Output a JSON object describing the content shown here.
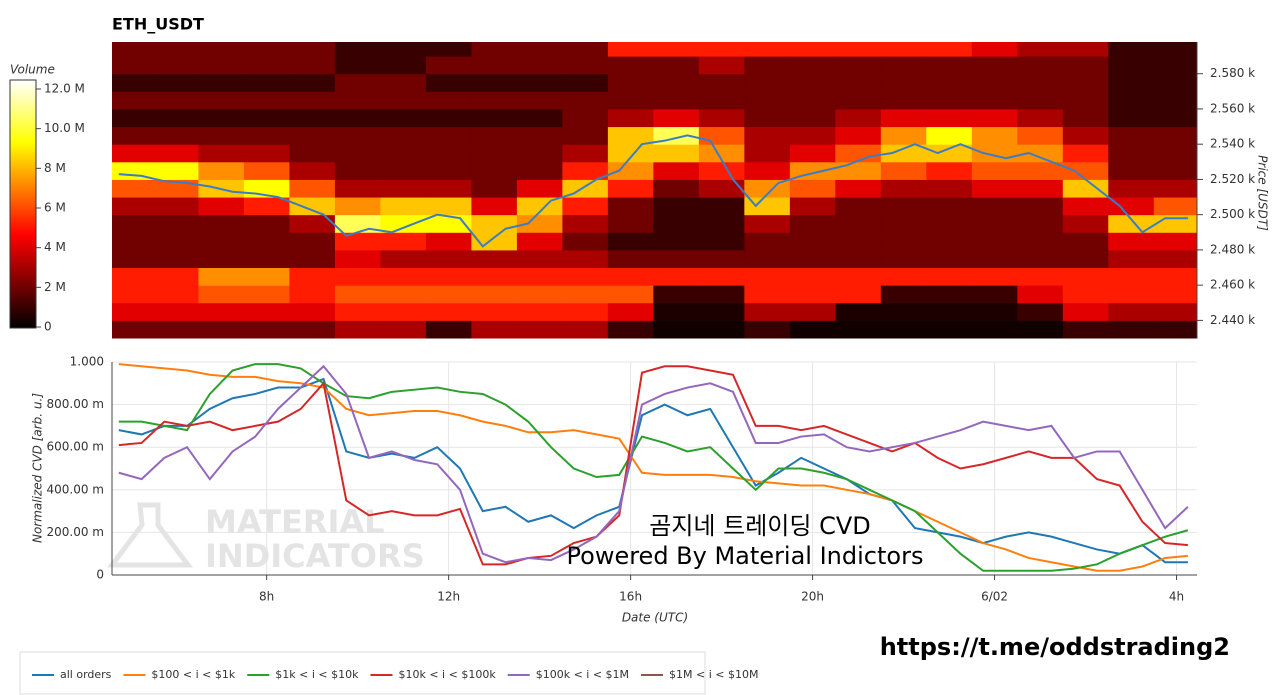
{
  "chart_data": [
    {
      "type": "heatmap",
      "title": "ETH_USDT",
      "ylabel": "Price [USDT]",
      "colorbar_label": "Volume",
      "x": [
        5,
        6,
        7,
        8,
        9,
        10,
        11,
        12,
        13,
        14,
        15,
        16,
        17,
        18,
        19,
        20,
        21,
        22,
        23,
        24,
        25,
        26,
        27,
        28
      ],
      "y": [
        2435,
        2445,
        2455,
        2465,
        2475,
        2485,
        2495,
        2505,
        2515,
        2525,
        2535,
        2545,
        2555,
        2565,
        2575,
        2585,
        2595
      ],
      "values": [
        [
          2,
          2,
          2,
          2,
          2,
          3,
          3,
          1,
          3,
          3,
          3,
          1,
          0.3,
          0.3,
          1,
          0.3,
          0.3,
          0.3,
          0.3,
          0.3,
          0.3,
          1,
          1,
          1
        ],
        [
          4,
          4,
          4,
          4,
          4,
          5,
          5,
          5,
          5,
          5,
          5,
          4,
          0.5,
          0.5,
          3,
          3,
          0.5,
          0.5,
          0.5,
          0.5,
          1,
          4,
          3,
          3
        ],
        [
          5,
          5,
          6,
          6,
          5,
          6,
          6,
          6,
          6,
          6,
          6,
          6,
          1,
          1,
          5,
          5,
          5,
          1,
          1,
          1,
          4,
          5,
          5,
          5
        ],
        [
          5,
          5,
          7,
          7,
          5,
          5,
          5,
          5,
          5,
          5,
          5,
          5,
          5,
          5,
          5,
          5,
          5,
          5,
          5,
          5,
          5,
          5,
          5,
          5
        ],
        [
          2,
          2,
          2,
          2,
          2,
          4,
          3,
          3,
          3,
          3,
          3,
          2,
          2,
          2,
          2,
          2,
          2,
          2,
          2,
          2,
          2,
          2,
          3,
          3
        ],
        [
          2,
          2,
          2,
          2,
          2,
          5,
          5,
          4,
          8,
          4,
          2,
          1,
          1,
          1,
          2,
          2,
          2,
          2,
          2,
          2,
          2,
          2,
          4,
          4
        ],
        [
          2,
          2,
          2,
          2,
          3,
          10,
          9,
          9,
          8,
          7,
          3,
          2,
          1,
          1,
          3,
          2,
          2,
          2,
          2,
          2,
          2,
          3,
          8,
          8
        ],
        [
          3,
          3,
          4,
          5,
          8,
          7,
          8,
          8,
          4,
          8,
          5,
          2,
          1,
          1,
          8,
          3,
          2,
          2,
          2,
          2,
          2,
          4,
          4,
          6
        ],
        [
          6,
          6,
          8,
          9,
          6,
          3,
          3,
          3,
          2,
          4,
          8,
          5,
          2,
          3,
          7,
          6,
          4,
          3,
          3,
          4,
          4,
          8,
          3,
          3
        ],
        [
          9,
          9,
          7,
          6,
          3,
          2,
          2,
          2,
          2,
          2,
          5,
          7,
          4,
          5,
          4,
          7,
          7,
          6,
          5,
          6,
          6,
          6,
          2,
          2
        ],
        [
          4,
          4,
          3,
          3,
          2,
          2,
          2,
          2,
          2,
          2,
          3,
          8,
          8,
          7,
          3,
          4,
          6,
          8,
          8,
          7,
          7,
          5,
          2,
          2
        ],
        [
          2,
          2,
          2,
          2,
          2,
          2,
          2,
          2,
          2,
          2,
          2,
          8,
          10,
          6,
          3,
          3,
          4,
          7,
          9,
          7,
          6,
          3,
          2,
          2
        ],
        [
          1,
          1,
          1,
          1,
          1,
          1,
          1,
          1,
          1,
          1,
          2,
          3,
          4,
          3,
          2,
          2,
          3,
          4,
          4,
          4,
          3,
          2,
          1,
          1
        ],
        [
          2,
          2,
          2,
          2,
          2,
          2,
          2,
          2,
          2,
          2,
          2,
          2,
          2,
          2,
          2,
          2,
          2,
          2,
          2,
          2,
          2,
          2,
          1,
          1
        ],
        [
          1,
          1,
          1,
          1,
          1,
          2,
          2,
          1,
          1,
          1,
          1,
          2,
          2,
          2,
          2,
          2,
          2,
          2,
          2,
          2,
          2,
          2,
          1,
          1
        ],
        [
          2,
          2,
          2,
          2,
          2,
          1,
          1,
          2,
          2,
          2,
          2,
          2,
          2,
          3,
          2,
          2,
          2,
          2,
          2,
          2,
          2,
          2,
          1,
          1
        ],
        [
          2,
          2,
          2,
          2,
          2,
          1,
          1,
          1,
          2,
          2,
          2,
          5,
          5,
          5,
          5,
          5,
          5,
          5,
          5,
          4,
          3,
          3,
          1,
          1
        ]
      ],
      "clim": [
        0,
        12
      ],
      "cticks": [
        0,
        {
          "value": 2,
          "label": "2 M"
        },
        {
          "value": 4,
          "label": "4 M"
        },
        {
          "value": 6,
          "label": "6 M"
        },
        {
          "value": 8,
          "label": "8 M"
        },
        {
          "value": 10,
          "label": "10.0 M"
        },
        {
          "value": 12,
          "label": "12.0 M"
        }
      ],
      "xlim": [
        4.6,
        28.45
      ],
      "ylim": [
        2430,
        2598
      ],
      "yticks": [
        {
          "value": 2440,
          "label": "2.440 k"
        },
        {
          "value": 2460,
          "label": "2.460 k"
        },
        {
          "value": 2480,
          "label": "2.480 k"
        },
        {
          "value": 2500,
          "label": "2.500 k"
        },
        {
          "value": 2520,
          "label": "2.520 k"
        },
        {
          "value": 2540,
          "label": "2.540 k"
        },
        {
          "value": 2560,
          "label": "2.560 k"
        },
        {
          "value": 2580,
          "label": "2.580 k"
        }
      ],
      "line": {
        "color": "#3b7dc4",
        "x": [
          4.75,
          5.25,
          5.75,
          6.25,
          6.75,
          7.25,
          7.75,
          8.25,
          8.75,
          9.25,
          9.75,
          10.25,
          10.75,
          11.25,
          11.75,
          12.25,
          12.75,
          13.25,
          13.75,
          14.25,
          14.75,
          15.25,
          15.75,
          16.25,
          16.75,
          17.25,
          17.75,
          18.25,
          18.75,
          19.25,
          19.75,
          20.25,
          20.75,
          21.25,
          21.75,
          22.25,
          22.75,
          23.25,
          23.75,
          24.25,
          24.75,
          25.25,
          25.75,
          26.25,
          26.75,
          27.25,
          27.75,
          28.25
        ],
        "values": [
          2523,
          2522,
          2519,
          2518,
          2516,
          2513,
          2512,
          2510,
          2505,
          2500,
          2488,
          2492,
          2490,
          2495,
          2500,
          2498,
          2482,
          2492,
          2495,
          2508,
          2512,
          2520,
          2525,
          2540,
          2542,
          2545,
          2542,
          2520,
          2505,
          2518,
          2522,
          2525,
          2528,
          2533,
          2535,
          2540,
          2535,
          2540,
          2535,
          2532,
          2535,
          2530,
          2525,
          2515,
          2505,
          2490,
          2498,
          2498
        ]
      }
    },
    {
      "type": "line",
      "xlabel": "Date (UTC)",
      "ylabel": "Normalized CVD [arb. u.]",
      "grid": true,
      "x": [
        4.75,
        5.25,
        5.75,
        6.25,
        6.75,
        7.25,
        7.75,
        8.25,
        8.75,
        9.25,
        9.75,
        10.25,
        10.75,
        11.25,
        11.75,
        12.25,
        12.75,
        13.25,
        13.75,
        14.25,
        14.75,
        15.25,
        15.75,
        16.25,
        16.75,
        17.25,
        17.75,
        18.25,
        18.75,
        19.25,
        19.75,
        20.25,
        20.75,
        21.25,
        21.75,
        22.25,
        22.75,
        23.25,
        23.75,
        24.25,
        24.75,
        25.25,
        25.75,
        26.25,
        26.75,
        27.25,
        27.75,
        28.25
      ],
      "xlim": [
        4.6,
        28.45
      ],
      "xticks": [
        {
          "value": 8,
          "label": "8h"
        },
        {
          "value": 12,
          "label": "12h"
        },
        {
          "value": 16,
          "label": "16h"
        },
        {
          "value": 20,
          "label": "20h"
        },
        {
          "value": 24,
          "label": "6/02"
        },
        {
          "value": 28,
          "label": "4h"
        }
      ],
      "ylim": [
        0,
        1
      ],
      "yticks": [
        0,
        {
          "value": 0.2,
          "label": "200.00 m"
        },
        {
          "value": 0.4,
          "label": "400.00 m"
        },
        {
          "value": 0.6,
          "label": "600.00 m"
        },
        {
          "value": 0.8,
          "label": "800.00 m"
        },
        {
          "value": 1,
          "label": "1.000"
        }
      ],
      "series": [
        {
          "name": "all orders",
          "color": "#1f77b4",
          "values": [
            0.68,
            0.66,
            0.7,
            0.7,
            0.78,
            0.83,
            0.85,
            0.88,
            0.88,
            0.92,
            0.58,
            0.55,
            0.57,
            0.55,
            0.6,
            0.5,
            0.3,
            0.32,
            0.25,
            0.28,
            0.22,
            0.28,
            0.32,
            0.75,
            0.8,
            0.75,
            0.78,
            0.6,
            0.42,
            0.48,
            0.55,
            0.5,
            0.45,
            0.38,
            0.35,
            0.22,
            0.2,
            0.18,
            0.15,
            0.18,
            0.2,
            0.18,
            0.15,
            0.12,
            0.1,
            0.14,
            0.06,
            0.06
          ]
        },
        {
          "name": "$100 < i < $1k",
          "color": "#ff7f0e",
          "values": [
            0.99,
            0.98,
            0.97,
            0.96,
            0.94,
            0.93,
            0.93,
            0.91,
            0.9,
            0.88,
            0.78,
            0.75,
            0.76,
            0.77,
            0.77,
            0.75,
            0.72,
            0.7,
            0.67,
            0.67,
            0.68,
            0.66,
            0.64,
            0.48,
            0.47,
            0.47,
            0.47,
            0.46,
            0.44,
            0.43,
            0.42,
            0.42,
            0.4,
            0.38,
            0.35,
            0.3,
            0.25,
            0.2,
            0.15,
            0.12,
            0.08,
            0.06,
            0.04,
            0.02,
            0.02,
            0.04,
            0.08,
            0.09
          ]
        },
        {
          "name": "$1k < i < $10k",
          "color": "#2ca02c",
          "values": [
            0.72,
            0.72,
            0.7,
            0.68,
            0.85,
            0.96,
            0.99,
            0.99,
            0.97,
            0.9,
            0.84,
            0.83,
            0.86,
            0.87,
            0.88,
            0.86,
            0.85,
            0.8,
            0.72,
            0.6,
            0.5,
            0.46,
            0.47,
            0.65,
            0.62,
            0.58,
            0.6,
            0.5,
            0.4,
            0.5,
            0.5,
            0.48,
            0.45,
            0.4,
            0.35,
            0.3,
            0.2,
            0.1,
            0.02,
            0.02,
            0.02,
            0.02,
            0.03,
            0.05,
            0.1,
            0.14,
            0.18,
            0.21
          ]
        },
        {
          "name": "$10k < i < $100k",
          "color": "#d62728",
          "values": [
            0.61,
            0.62,
            0.72,
            0.7,
            0.72,
            0.68,
            0.7,
            0.72,
            0.78,
            0.9,
            0.35,
            0.28,
            0.3,
            0.28,
            0.28,
            0.31,
            0.05,
            0.05,
            0.08,
            0.09,
            0.15,
            0.18,
            0.28,
            0.95,
            0.98,
            0.98,
            0.96,
            0.94,
            0.7,
            0.7,
            0.68,
            0.7,
            0.66,
            0.62,
            0.58,
            0.62,
            0.55,
            0.5,
            0.52,
            0.55,
            0.58,
            0.55,
            0.55,
            0.45,
            0.42,
            0.25,
            0.15,
            0.14
          ]
        },
        {
          "name": "$100k < i < $1M",
          "color": "#9467bd",
          "values": [
            0.48,
            0.45,
            0.55,
            0.6,
            0.45,
            0.58,
            0.65,
            0.78,
            0.88,
            0.98,
            0.85,
            0.55,
            0.58,
            0.54,
            0.52,
            0.4,
            0.1,
            0.06,
            0.08,
            0.07,
            0.12,
            0.18,
            0.3,
            0.8,
            0.85,
            0.88,
            0.9,
            0.86,
            0.62,
            0.62,
            0.65,
            0.66,
            0.6,
            0.58,
            0.6,
            0.62,
            0.65,
            0.68,
            0.72,
            0.7,
            0.68,
            0.7,
            0.55,
            0.58,
            0.58,
            0.4,
            0.22,
            0.32
          ]
        },
        {
          "name": "$1M < i < $10M",
          "color": "#8c564b",
          "values": [
            null,
            null,
            null,
            null,
            null,
            null,
            null,
            null,
            null,
            null,
            null,
            null,
            null,
            null,
            null,
            null,
            null,
            null,
            null,
            null,
            null,
            null,
            null,
            null,
            null,
            null,
            null,
            null,
            null,
            null,
            null,
            null,
            null,
            null,
            null,
            null,
            null,
            null,
            null,
            null,
            null,
            null,
            null,
            null,
            null,
            null,
            null,
            null
          ]
        }
      ]
    }
  ],
  "watermark": [
    "MATERIAL",
    "INDICATORS"
  ],
  "overlay": [
    "곰지네 트레이딩 CVD",
    "Powered By Material Indictors"
  ],
  "url": "https://t.me/oddstrading2"
}
